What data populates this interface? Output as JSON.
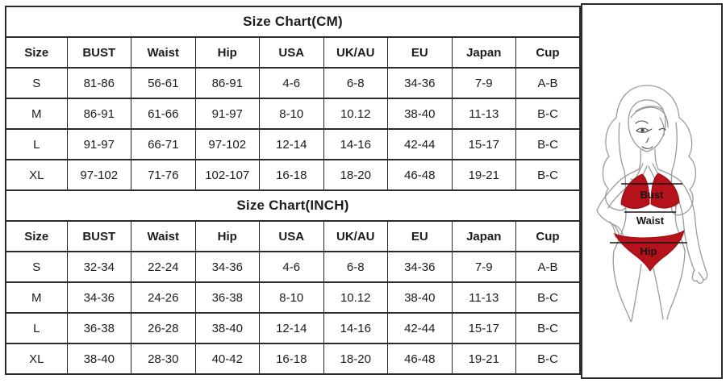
{
  "page_title": "Size Chart",
  "colors": {
    "border": "#2b2b2b",
    "text": "#1c1c1c",
    "accent_red": "#b5121b",
    "figure_line": "#9a9a9a"
  },
  "chart_data": [
    {
      "type": "table",
      "title": "Size Chart(CM)",
      "columns": [
        "Size",
        "BUST",
        "Waist",
        "Hip",
        "USA",
        "UK/AU",
        "EU",
        "Japan",
        "Cup"
      ],
      "rows": [
        [
          "S",
          "81-86",
          "56-61",
          "86-91",
          "4-6",
          "6-8",
          "34-36",
          "7-9",
          "A-B"
        ],
        [
          "M",
          "86-91",
          "61-66",
          "91-97",
          "8-10",
          "10.12",
          "38-40",
          "11-13",
          "B-C"
        ],
        [
          "L",
          "91-97",
          "66-71",
          "97-102",
          "12-14",
          "14-16",
          "42-44",
          "15-17",
          "B-C"
        ],
        [
          "XL",
          "97-102",
          "71-76",
          "102-107",
          "16-18",
          "18-20",
          "46-48",
          "19-21",
          "B-C"
        ]
      ]
    },
    {
      "type": "table",
      "title": "Size Chart(INCH)",
      "columns": [
        "Size",
        "BUST",
        "Waist",
        "Hip",
        "USA",
        "UK/AU",
        "EU",
        "Japan",
        "Cup"
      ],
      "rows": [
        [
          "S",
          "32-34",
          "22-24",
          "34-36",
          "4-6",
          "6-8",
          "34-36",
          "7-9",
          "A-B"
        ],
        [
          "M",
          "34-36",
          "24-26",
          "36-38",
          "8-10",
          "10.12",
          "38-40",
          "11-13",
          "B-C"
        ],
        [
          "L",
          "36-38",
          "26-28",
          "38-40",
          "12-14",
          "14-16",
          "42-44",
          "15-17",
          "B-C"
        ],
        [
          "XL",
          "38-40",
          "28-30",
          "40-42",
          "16-18",
          "18-20",
          "46-48",
          "19-21",
          "B-C"
        ]
      ]
    }
  ],
  "figure": {
    "labels": {
      "bust": "Bust",
      "waist": "Waist",
      "hip": "Hip"
    }
  }
}
